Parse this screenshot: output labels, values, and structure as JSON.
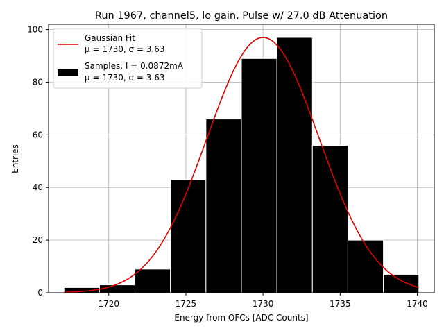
{
  "chart_data": {
    "type": "bar",
    "title": "Run 1967, channel5, lo gain, Pulse w/ 27.0 dB Attenuation",
    "xlabel": "Energy from OFCs [ADC Counts]",
    "ylabel": "Entries",
    "xlim": [
      1716.1,
      1741.1
    ],
    "ylim": [
      0,
      102
    ],
    "xticks": [
      1720,
      1725,
      1730,
      1735,
      1740
    ],
    "yticks": [
      0,
      20,
      40,
      60,
      80,
      100
    ],
    "grid": true,
    "legend_position": "top-left",
    "histogram": {
      "name": "Samples, I = 0.0872mA",
      "name_line2": "μ = 1730, σ = 3.63",
      "color": "#000000",
      "edge_color": "#ffffff",
      "bins": [
        {
          "x0": 1717.1,
          "x1": 1719.4,
          "count": 2
        },
        {
          "x0": 1719.4,
          "x1": 1721.7,
          "count": 3
        },
        {
          "x0": 1721.7,
          "x1": 1724.0,
          "count": 9
        },
        {
          "x0": 1724.0,
          "x1": 1726.3,
          "count": 43
        },
        {
          "x0": 1726.3,
          "x1": 1728.6,
          "count": 66
        },
        {
          "x0": 1728.6,
          "x1": 1730.9,
          "count": 89
        },
        {
          "x0": 1730.9,
          "x1": 1733.2,
          "count": 97
        },
        {
          "x0": 1733.2,
          "x1": 1735.5,
          "count": 56
        },
        {
          "x0": 1735.5,
          "x1": 1737.8,
          "count": 20
        },
        {
          "x0": 1737.8,
          "x1": 1740.1,
          "count": 7
        }
      ]
    },
    "fit": {
      "name": "Gaussian Fit",
      "name_line2": "μ = 1730, σ = 3.63",
      "color": "#e00000",
      "mu": 1730,
      "sigma": 3.63,
      "amplitude": 97,
      "x_range": [
        1717.1,
        1740.1
      ]
    }
  }
}
